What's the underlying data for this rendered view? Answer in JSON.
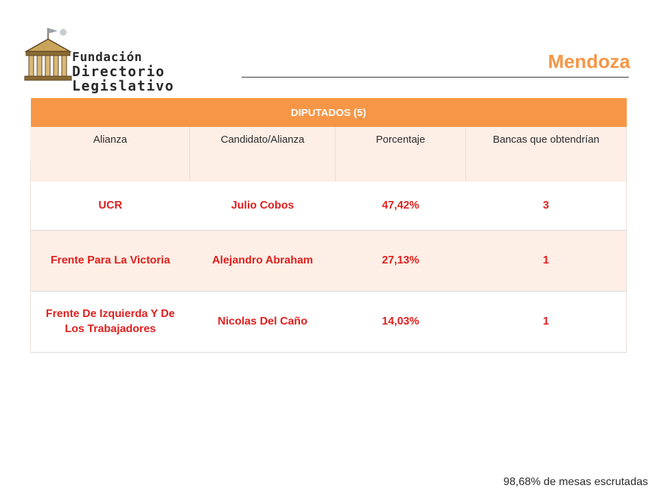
{
  "logo": {
    "line1": "Fundación",
    "line2": "Directorio Legislativo",
    "icon": "parliament-building-icon"
  },
  "page_title": "Mendoza",
  "table": {
    "header": "DIPUTADOS (5)",
    "columns": [
      "Alianza",
      "Candidato/Alianza",
      "Porcentaje",
      "Bancas que obtendrían"
    ],
    "rows": [
      {
        "alianza": "UCR",
        "candidato": "Julio Cobos",
        "porcentaje": "47,42%",
        "bancas": "3"
      },
      {
        "alianza": "Frente Para La Victoria",
        "candidato": "Alejandro Abraham",
        "porcentaje": "27,13%",
        "bancas": "1"
      },
      {
        "alianza": "Frente De Izquierda Y De Los Trabajadores",
        "candidato": "Nicolas Del Caño",
        "porcentaje": "14,03%",
        "bancas": "1"
      }
    ]
  },
  "footnote": "98,68% de mesas escrutadas",
  "colors": {
    "accent": "#f79646",
    "data_text": "#e0201d",
    "band": "#fdeee6"
  }
}
